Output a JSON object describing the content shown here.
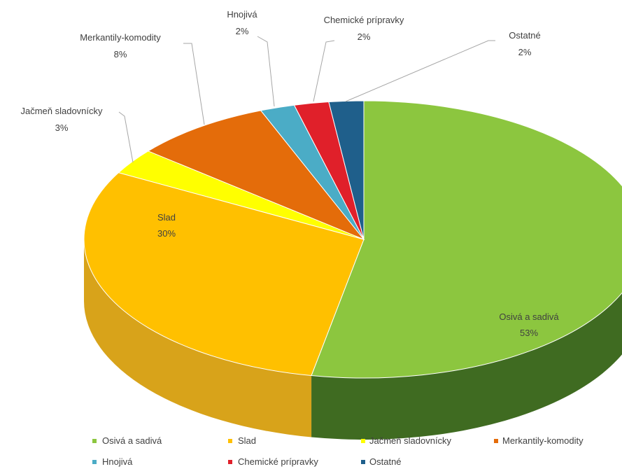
{
  "chart_data": {
    "type": "pie",
    "title": "",
    "legend_position": "bottom",
    "categories": [
      "Osivá a sadivá",
      "Slad",
      "Jačmeň sladovnícky",
      "Merkantily-komodity",
      "Hnojivá",
      "Chemické prípravky",
      "Ostatné"
    ],
    "values": [
      53,
      30,
      3,
      8,
      2,
      2,
      2
    ],
    "value_labels": [
      "53%",
      "30%",
      "3%",
      "8%",
      "2%",
      "2%",
      "2%"
    ],
    "colors": [
      "#8cc63f",
      "#ffc000",
      "#ffff00",
      "#e46c0a",
      "#4bacc6",
      "#e0202a",
      "#1f5f8b"
    ],
    "side_colors": [
      "#3f6b21",
      "#d8a31a",
      "#e0e000",
      "#a9500f",
      "#33808f",
      "#a8141c",
      "#143f5e"
    ]
  }
}
